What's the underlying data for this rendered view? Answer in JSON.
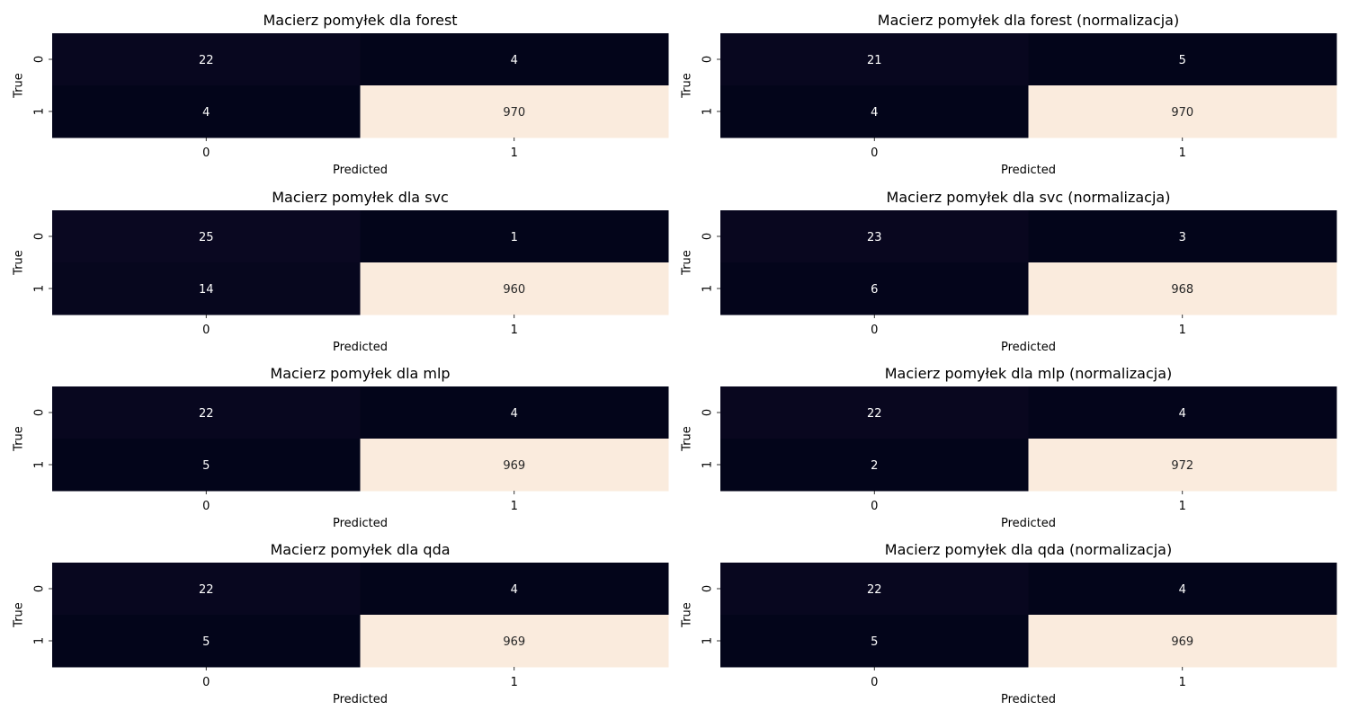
{
  "chart_data": [
    {
      "type": "heatmap",
      "title": "Macierz pomyłek dla forest",
      "xlabel": "Predicted",
      "ylabel": "True",
      "x_ticks": [
        "0",
        "1"
      ],
      "y_ticks": [
        "0",
        "1"
      ],
      "matrix": [
        [
          22,
          4
        ],
        [
          4,
          970
        ]
      ],
      "colormap": "rocket",
      "colorbar": false
    },
    {
      "type": "heatmap",
      "title": "Macierz pomyłek dla forest (normalizacja)",
      "xlabel": "Predicted",
      "ylabel": "True",
      "x_ticks": [
        "0",
        "1"
      ],
      "y_ticks": [
        "0",
        "1"
      ],
      "matrix": [
        [
          21,
          5
        ],
        [
          4,
          970
        ]
      ],
      "colormap": "rocket",
      "colorbar": false
    },
    {
      "type": "heatmap",
      "title": "Macierz pomyłek dla svc",
      "xlabel": "Predicted",
      "ylabel": "True",
      "x_ticks": [
        "0",
        "1"
      ],
      "y_ticks": [
        "0",
        "1"
      ],
      "matrix": [
        [
          25,
          1
        ],
        [
          14,
          960
        ]
      ],
      "colormap": "rocket",
      "colorbar": false
    },
    {
      "type": "heatmap",
      "title": "Macierz pomyłek dla svc (normalizacja)",
      "xlabel": "Predicted",
      "ylabel": "True",
      "x_ticks": [
        "0",
        "1"
      ],
      "y_ticks": [
        "0",
        "1"
      ],
      "matrix": [
        [
          23,
          3
        ],
        [
          6,
          968
        ]
      ],
      "colormap": "rocket",
      "colorbar": false
    },
    {
      "type": "heatmap",
      "title": "Macierz pomyłek dla mlp",
      "xlabel": "Predicted",
      "ylabel": "True",
      "x_ticks": [
        "0",
        "1"
      ],
      "y_ticks": [
        "0",
        "1"
      ],
      "matrix": [
        [
          22,
          4
        ],
        [
          5,
          969
        ]
      ],
      "colormap": "rocket",
      "colorbar": false
    },
    {
      "type": "heatmap",
      "title": "Macierz pomyłek dla mlp (normalizacja)",
      "xlabel": "Predicted",
      "ylabel": "True",
      "x_ticks": [
        "0",
        "1"
      ],
      "y_ticks": [
        "0",
        "1"
      ],
      "matrix": [
        [
          22,
          4
        ],
        [
          2,
          972
        ]
      ],
      "colormap": "rocket",
      "colorbar": false
    },
    {
      "type": "heatmap",
      "title": "Macierz pomyłek dla qda",
      "xlabel": "Predicted",
      "ylabel": "True",
      "x_ticks": [
        "0",
        "1"
      ],
      "y_ticks": [
        "0",
        "1"
      ],
      "matrix": [
        [
          22,
          4
        ],
        [
          5,
          969
        ]
      ],
      "colormap": "rocket",
      "colorbar": false
    },
    {
      "type": "heatmap",
      "title": "Macierz pomyłek dla qda (normalizacja)",
      "xlabel": "Predicted",
      "ylabel": "True",
      "x_ticks": [
        "0",
        "1"
      ],
      "y_ticks": [
        "0",
        "1"
      ],
      "matrix": [
        [
          22,
          4
        ],
        [
          5,
          969
        ]
      ],
      "colormap": "rocket",
      "colorbar": false
    }
  ]
}
